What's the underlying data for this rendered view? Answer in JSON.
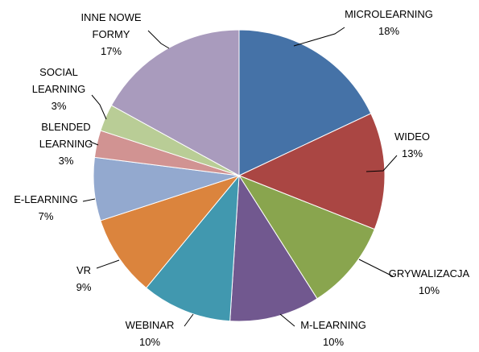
{
  "chart_data": {
    "type": "pie",
    "title": "",
    "start": "top, clockwise",
    "series": [
      {
        "label": [
          "MICROLEARNING"
        ],
        "pct_label": "18%",
        "value": 18,
        "color": "#4572A7"
      },
      {
        "label": [
          "WIDEO"
        ],
        "pct_label": "13%",
        "value": 13,
        "color": "#AA4643"
      },
      {
        "label": [
          "GRYWALIZACJA"
        ],
        "pct_label": "10%",
        "value": 10,
        "color": "#89A54E"
      },
      {
        "label": [
          "M-LEARNING"
        ],
        "pct_label": "10%",
        "value": 10,
        "color": "#71588F"
      },
      {
        "label": [
          "WEBINAR"
        ],
        "pct_label": "10%",
        "value": 10,
        "color": "#4198AF"
      },
      {
        "label": [
          "VR"
        ],
        "pct_label": "9%",
        "value": 9,
        "color": "#DB843D"
      },
      {
        "label": [
          "E-LEARNING"
        ],
        "pct_label": "7%",
        "value": 7,
        "color": "#93A9CF"
      },
      {
        "label": [
          "BLENDED",
          "LEARNING"
        ],
        "pct_label": "3%",
        "value": 3,
        "color": "#D19392"
      },
      {
        "label": [
          "SOCIAL",
          "LEARNING"
        ],
        "pct_label": "3%",
        "value": 3,
        "color": "#B9CD96"
      },
      {
        "label": [
          "INNE NOWE",
          "FORMY"
        ],
        "pct_label": "17%",
        "value": 17,
        "color": "#A99BBD"
      }
    ]
  }
}
